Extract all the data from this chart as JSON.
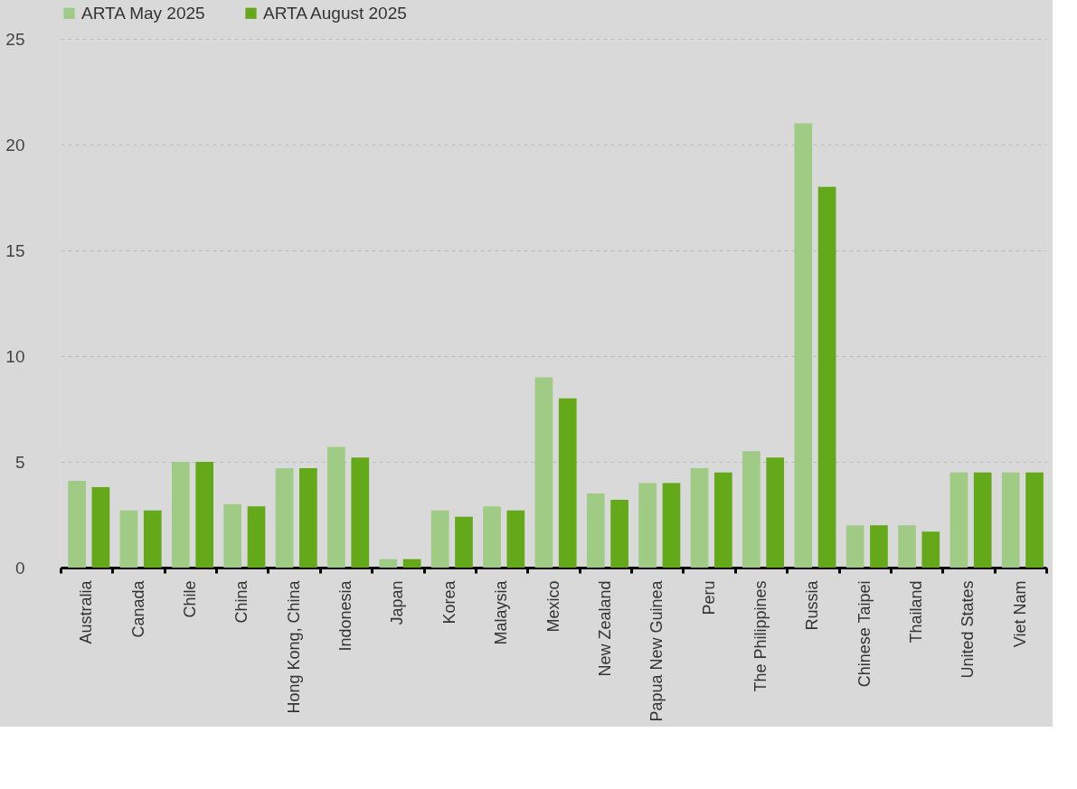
{
  "chart_data": {
    "type": "bar",
    "categories": [
      "Australia",
      "Canada",
      "Chile",
      "China",
      "Hong Kong, China",
      "Indonesia",
      "Japan",
      "Korea",
      "Malaysia",
      "Mexico",
      "New Zealand",
      "Papua New Guinea",
      "Peru",
      "The Philippines",
      "Russia",
      "Chinese Taipei",
      "Thailand",
      "United States",
      "Viet Nam"
    ],
    "series": [
      {
        "name": "ARTA May 2025",
        "color": "#9fcb85",
        "values": [
          4.1,
          2.7,
          5,
          3,
          4.7,
          5.7,
          0.4,
          2.7,
          2.9,
          9,
          3.5,
          4,
          4.7,
          5.5,
          21,
          2,
          2,
          4.5,
          4.5
        ]
      },
      {
        "name": "ARTA August 2025",
        "color": "#63a91a",
        "values": [
          3.8,
          2.7,
          5,
          2.9,
          4.7,
          5.2,
          0.4,
          2.4,
          2.7,
          8,
          3.2,
          4,
          4.5,
          5.2,
          18,
          2,
          1.7,
          4.5,
          4.5
        ]
      }
    ],
    "ylim": [
      0,
      25
    ],
    "yticks": [
      0,
      5,
      10,
      15,
      20,
      25
    ],
    "grid": "y",
    "legend": "top"
  }
}
